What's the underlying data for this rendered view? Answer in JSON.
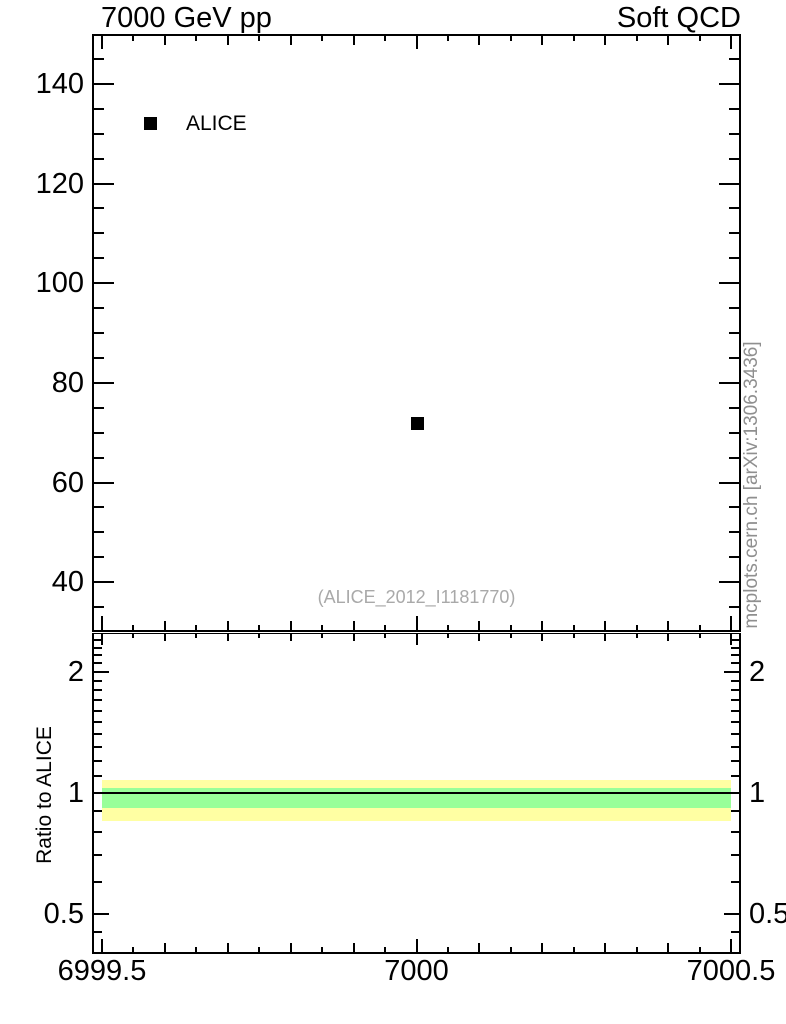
{
  "chart_data": {
    "type": "scatter",
    "title_left": "7000 GeV pp",
    "title_right": "Soft QCD",
    "watermark": "(ALICE_2012_I1181770)",
    "side_annotation": "mcplots.cern.ch [arXiv:1306.3436]",
    "x_axis": {
      "min": 6999.4841,
      "max": 7000.5159,
      "major_ticks": [
        6999.5,
        7000,
        7000.5
      ],
      "major_tick_labels": [
        "6999.5",
        "7000",
        "7000.5"
      ],
      "medium_ticks": [
        6999.6,
        6999.7,
        6999.8,
        6999.9,
        7000.1,
        7000.2,
        7000.3,
        7000.4
      ],
      "minor_ticks": [
        6999.55,
        6999.65,
        6999.75,
        6999.85,
        6999.95,
        7000.05,
        7000.15,
        7000.25,
        7000.35,
        7000.45
      ]
    },
    "main_panel": {
      "y_axis": {
        "min": 30,
        "max": 150,
        "scale": "linear",
        "major_ticks": [
          40,
          60,
          80,
          100,
          120,
          140
        ],
        "major_tick_labels": [
          "40",
          "60",
          "80",
          "100",
          "120",
          "140"
        ],
        "minor_ticks": [
          35,
          45,
          50,
          55,
          65,
          70,
          75,
          85,
          90,
          95,
          105,
          110,
          115,
          125,
          130,
          135,
          145
        ]
      },
      "series": [
        {
          "name": "ALICE",
          "marker": "filled-square",
          "color": "#000000",
          "points": [
            {
              "x": 7000,
              "y": 72
            }
          ]
        }
      ],
      "legend": [
        {
          "label": "ALICE",
          "marker": "filled-square",
          "color": "#000000"
        }
      ]
    },
    "ratio_panel": {
      "ylabel": "Ratio to ALICE",
      "y_axis": {
        "min": 0.4,
        "max": 2.5,
        "scale": "log",
        "major_ticks": [
          0.5,
          1,
          2
        ],
        "major_tick_labels": [
          "0.5",
          "1",
          "2"
        ],
        "minor_ticks": [
          0.45,
          0.6,
          0.7,
          0.8,
          0.9,
          1.1,
          1.2,
          1.3,
          1.4,
          1.5,
          1.6,
          1.7,
          1.8,
          1.9,
          2.1,
          2.2,
          2.3,
          2.4
        ]
      },
      "reference_line_y": 1,
      "bands": [
        {
          "name": "outer-uncertainty-band",
          "color": "#ffffa3",
          "x_from": 6999.5,
          "x_to": 7000.5,
          "y_from": 0.85,
          "y_to": 1.08
        },
        {
          "name": "inner-uncertainty-band",
          "color": "#99ff99",
          "x_from": 6999.5,
          "x_to": 7000.5,
          "y_from": 0.92,
          "y_to": 1.03
        }
      ]
    }
  },
  "colors": {
    "foreground": "#000000",
    "band_outer": "#ffffa3",
    "band_inner": "#99ff99",
    "watermark_gray": "#a9a9a9",
    "annotation_gray": "#8f8f8f"
  }
}
